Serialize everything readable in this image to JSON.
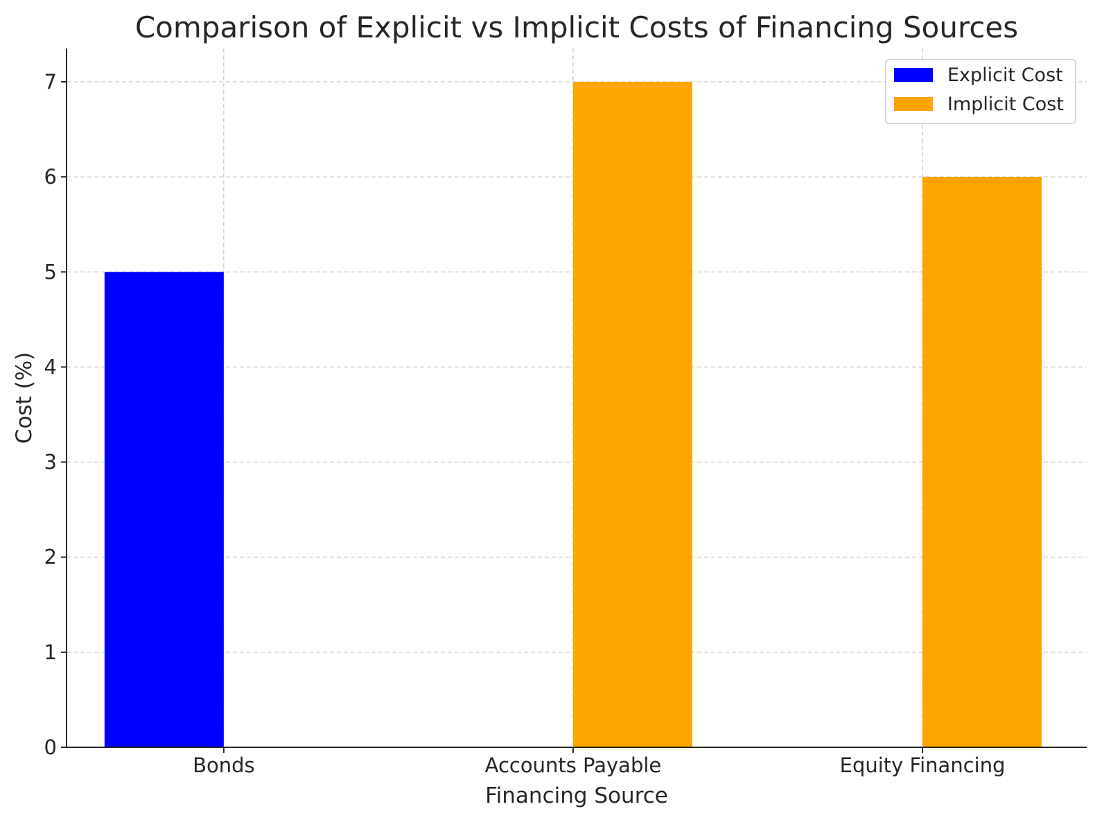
{
  "chart_data": {
    "type": "bar",
    "title": "Comparison of Explicit vs Implicit Costs of Financing Sources",
    "xlabel": "Financing Source",
    "ylabel": "Cost (%)",
    "categories": [
      "Bonds",
      "Accounts Payable",
      "Equity Financing"
    ],
    "series": [
      {
        "name": "Explicit Cost",
        "color": "#0000ff",
        "values": [
          5,
          0,
          0
        ]
      },
      {
        "name": "Implicit Cost",
        "color": "#ffa500",
        "values": [
          0,
          7,
          6
        ]
      }
    ],
    "ylim": [
      0,
      7.35
    ],
    "yticks": [
      0,
      1,
      2,
      3,
      4,
      5,
      6,
      7
    ],
    "grid": true,
    "legend_position": "top-right"
  }
}
